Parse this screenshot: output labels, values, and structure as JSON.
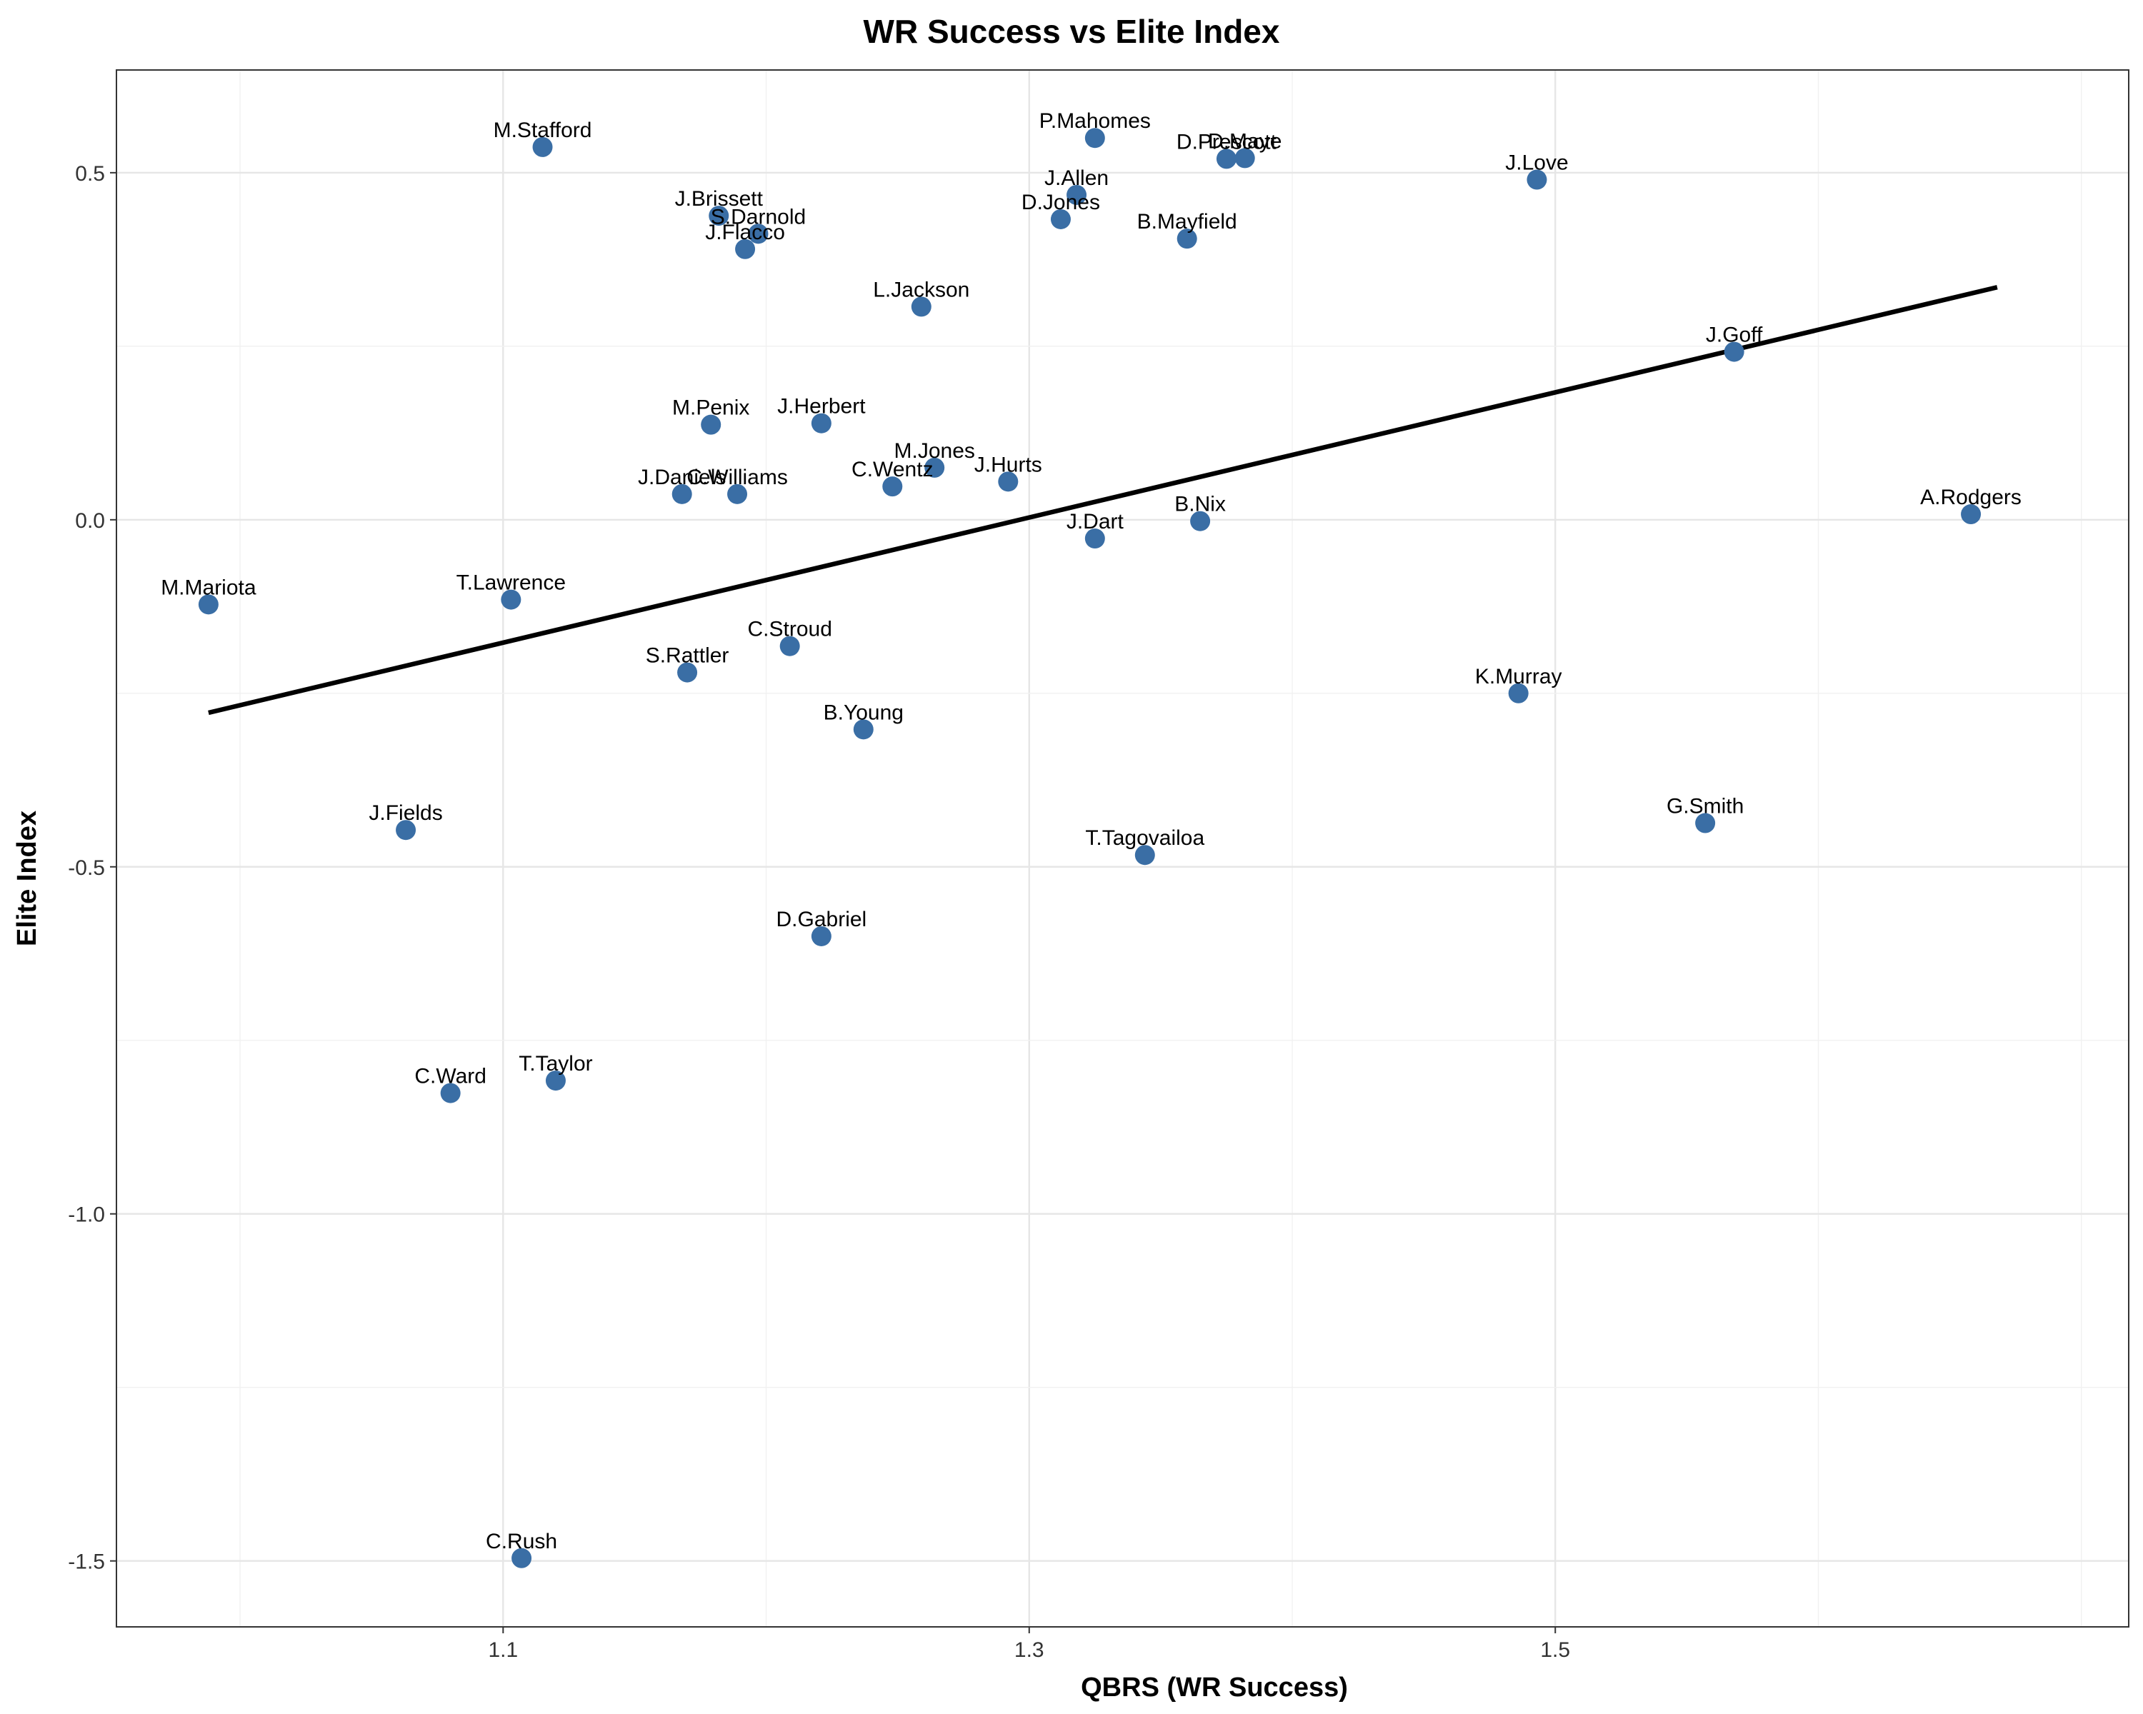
{
  "chart_data": {
    "type": "scatter",
    "title": "WR Success vs Elite Index",
    "xlabel": "QBRS (WR Success)",
    "ylabel": "Elite Index",
    "xlim": [
      0.953,
      1.718
    ],
    "ylim": [
      -1.595,
      0.648
    ],
    "x_ticks": [
      1.1,
      1.3,
      1.5
    ],
    "x_tick_labels": [
      "1.1",
      "1.3",
      "1.5"
    ],
    "y_ticks": [
      0.5,
      0.0,
      -0.5,
      -1.0,
      -1.5
    ],
    "y_tick_labels": [
      "0.5",
      "0.0",
      "-0.5",
      "-1.0",
      "-1.5"
    ],
    "grid": true,
    "point_color": "#3a6ea5",
    "trend_line": {
      "x": [
        0.988,
        1.668
      ],
      "y": [
        -0.278,
        0.335
      ],
      "color": "#000000"
    },
    "points": [
      {
        "label": "M.Stafford",
        "x": 1.115,
        "y": 0.537
      },
      {
        "label": "P.Mahomes",
        "x": 1.325,
        "y": 0.55
      },
      {
        "label": "D.Maye",
        "x": 1.382,
        "y": 0.521
      },
      {
        "label": "D.Prescott",
        "x": 1.375,
        "y": 0.52
      },
      {
        "label": "J.Love",
        "x": 1.493,
        "y": 0.49
      },
      {
        "label": "J.Allen",
        "x": 1.318,
        "y": 0.468
      },
      {
        "label": "J.Brissett",
        "x": 1.182,
        "y": 0.438
      },
      {
        "label": "S.Darnold",
        "x": 1.197,
        "y": 0.412
      },
      {
        "label": "D.Jones",
        "x": 1.312,
        "y": 0.433
      },
      {
        "label": "B.Mayfield",
        "x": 1.36,
        "y": 0.405
      },
      {
        "label": "J.Flacco",
        "x": 1.192,
        "y": 0.39
      },
      {
        "label": "L.Jackson",
        "x": 1.259,
        "y": 0.307
      },
      {
        "label": "J.Goff",
        "x": 1.568,
        "y": 0.242
      },
      {
        "label": "M.Penix",
        "x": 1.179,
        "y": 0.137
      },
      {
        "label": "J.Herbert",
        "x": 1.221,
        "y": 0.139
      },
      {
        "label": "M.Jones",
        "x": 1.264,
        "y": 0.075
      },
      {
        "label": "J.Hurts",
        "x": 1.292,
        "y": 0.055
      },
      {
        "label": "C.Wentz",
        "x": 1.248,
        "y": 0.048
      },
      {
        "label": "J.Daniels",
        "x": 1.168,
        "y": 0.037
      },
      {
        "label": "C.Williams",
        "x": 1.189,
        "y": 0.037
      },
      {
        "label": "A.Rodgers",
        "x": 1.658,
        "y": 0.008
      },
      {
        "label": "B.Nix",
        "x": 1.365,
        "y": -0.002
      },
      {
        "label": "J.Dart",
        "x": 1.325,
        "y": -0.027
      },
      {
        "label": "M.Mariota",
        "x": 0.988,
        "y": -0.122
      },
      {
        "label": "T.Lawrence",
        "x": 1.103,
        "y": -0.115
      },
      {
        "label": "C.Stroud",
        "x": 1.209,
        "y": -0.182
      },
      {
        "label": "S.Rattler",
        "x": 1.17,
        "y": -0.22
      },
      {
        "label": "K.Murray",
        "x": 1.486,
        "y": -0.25
      },
      {
        "label": "B.Young",
        "x": 1.237,
        "y": -0.302
      },
      {
        "label": "J.Fields",
        "x": 1.063,
        "y": -0.447
      },
      {
        "label": "G.Smith",
        "x": 1.557,
        "y": -0.437
      },
      {
        "label": "T.Tagovailoa",
        "x": 1.344,
        "y": -0.483
      },
      {
        "label": "D.Gabriel",
        "x": 1.221,
        "y": -0.6
      },
      {
        "label": "T.Taylor",
        "x": 1.12,
        "y": -0.808
      },
      {
        "label": "C.Ward",
        "x": 1.08,
        "y": -0.826
      },
      {
        "label": "C.Rush",
        "x": 1.107,
        "y": -1.496
      }
    ]
  }
}
